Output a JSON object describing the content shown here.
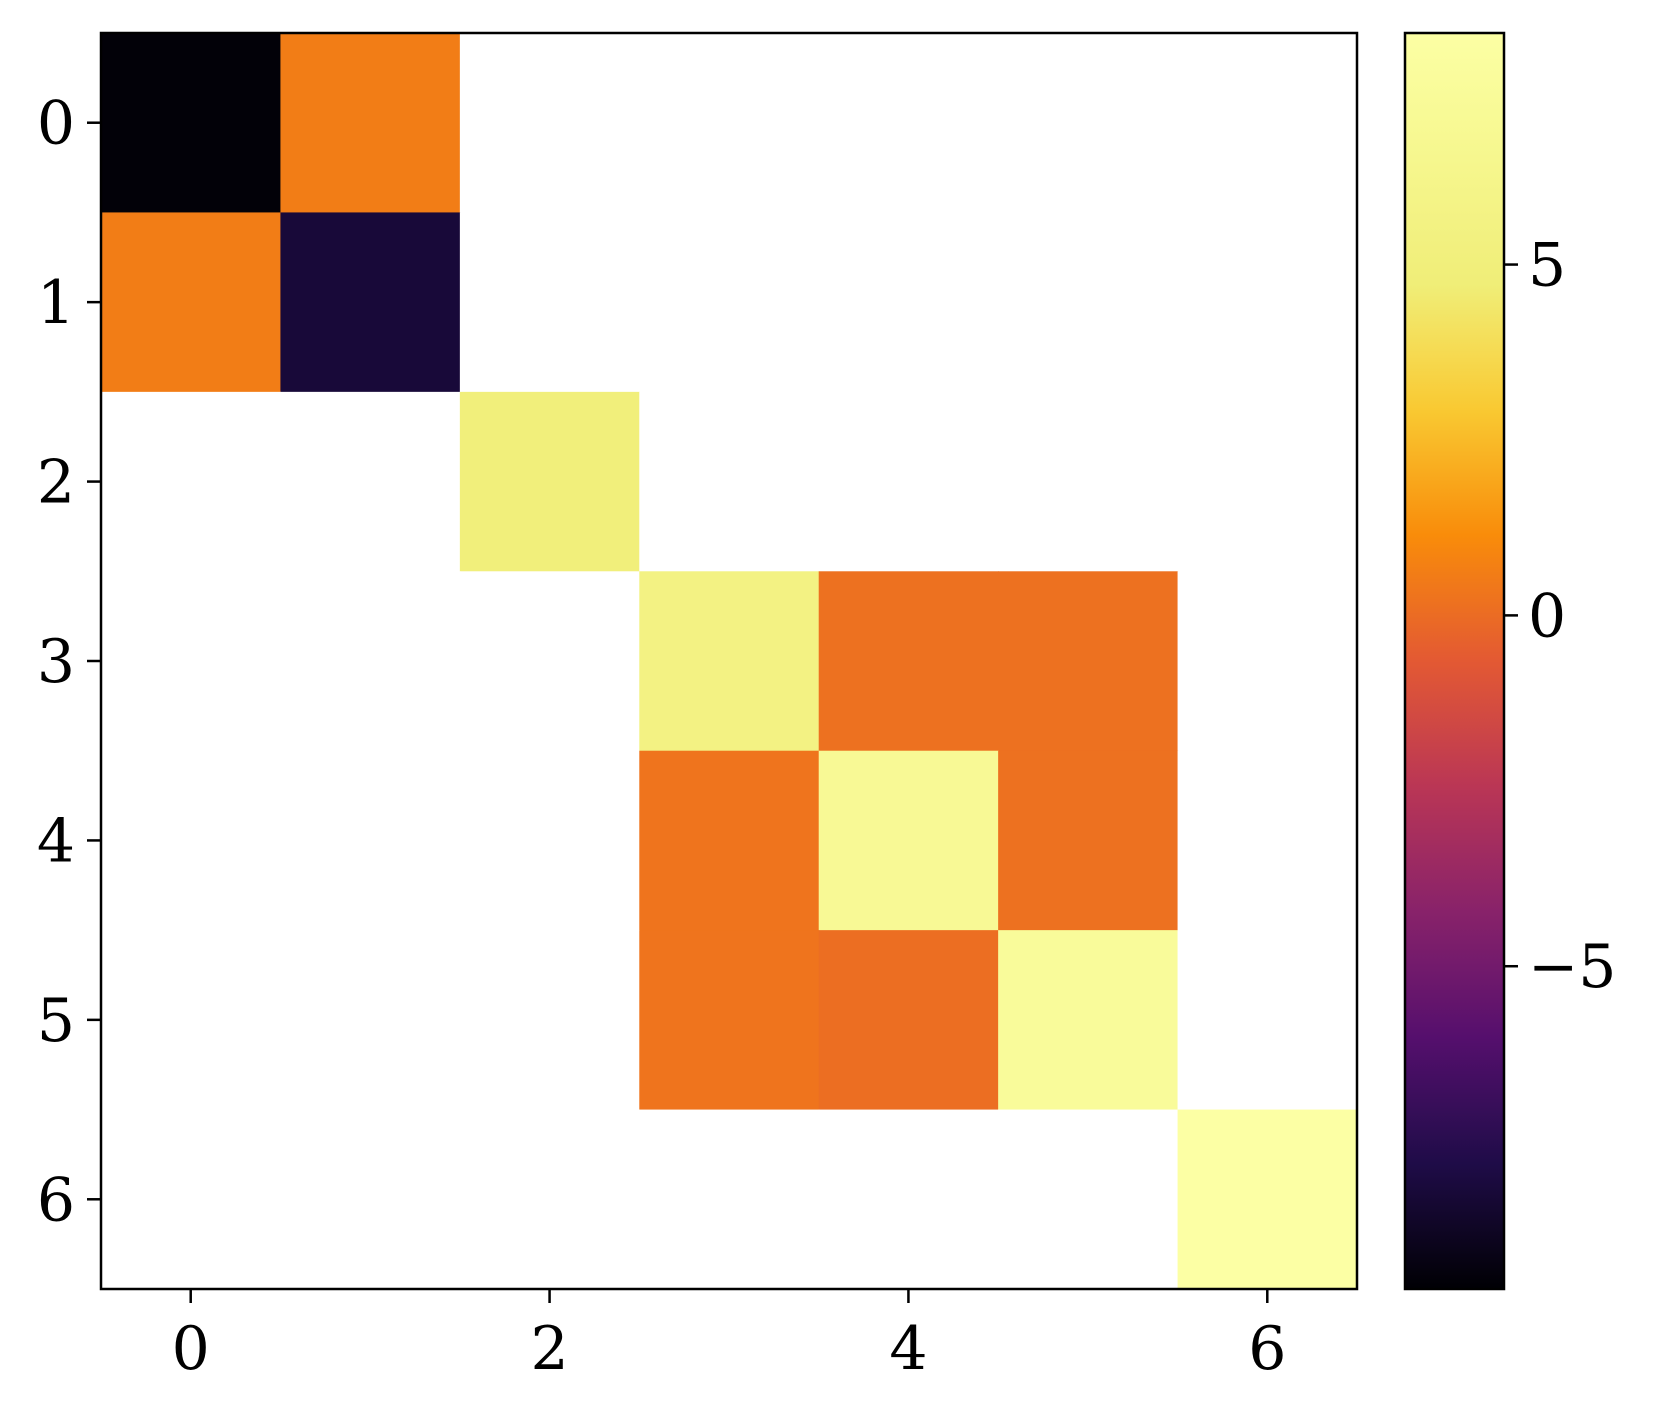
{
  "chart_data": {
    "type": "heatmap",
    "title": "",
    "xlabel": "",
    "ylabel": "",
    "rows": [
      0,
      1,
      2,
      3,
      4,
      5,
      6
    ],
    "cols": [
      0,
      1,
      2,
      3,
      4,
      5,
      6
    ],
    "x_ticks": [
      "0",
      "2",
      "4",
      "6"
    ],
    "y_ticks": [
      "0",
      "1",
      "2",
      "3",
      "4",
      "5",
      "6"
    ],
    "x_tick_values": [
      0,
      2,
      4,
      6
    ],
    "y_tick_values": [
      0,
      1,
      2,
      3,
      4,
      5,
      6
    ],
    "values": [
      [
        -9.5,
        0.6,
        null,
        null,
        null,
        null,
        null
      ],
      [
        0.6,
        -8.2,
        null,
        null,
        null,
        null,
        null
      ],
      [
        null,
        null,
        5.0,
        null,
        null,
        null,
        null
      ],
      [
        null,
        null,
        null,
        5.6,
        0.2,
        0.2,
        null
      ],
      [
        null,
        null,
        null,
        0.3,
        7.1,
        0.2,
        null
      ],
      [
        null,
        null,
        null,
        0.3,
        0.1,
        7.5,
        null
      ],
      [
        null,
        null,
        null,
        null,
        null,
        null,
        8.3
      ]
    ],
    "empty_cell_color": "#ffffff",
    "colormap": "inferno",
    "vmin": -9.6,
    "vmax": 8.3,
    "colorbar": {
      "ticks": [
        "5",
        "0",
        "−5"
      ],
      "tick_values": [
        5,
        0,
        -5
      ]
    },
    "grid": false,
    "legend": "none"
  }
}
